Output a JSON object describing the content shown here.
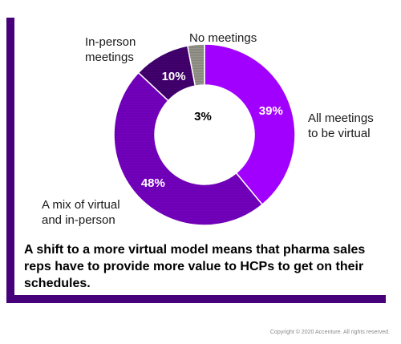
{
  "chart_data": {
    "type": "pie",
    "donut": true,
    "slices": [
      {
        "label_lines": [
          "All meetings",
          "to be virtual"
        ],
        "value": 39,
        "value_label": "39%",
        "color": "#a100ff",
        "hatched": false
      },
      {
        "label_lines": [
          "A mix of virtual",
          "and in-person"
        ],
        "value": 48,
        "value_label": "48%",
        "color": "#7500c0",
        "hatched": true
      },
      {
        "label_lines": [
          "In-person",
          "meetings"
        ],
        "value": 10,
        "value_label": "10%",
        "color": "#460073",
        "hatched": true
      },
      {
        "label_lines": [
          "No meetings"
        ],
        "value": 3,
        "value_label": "3%",
        "color": "#96968c",
        "hatched": true
      }
    ]
  },
  "caption": "A shift to a more virtual model means that pharma sales reps have to provide more value to HCPs to get on their schedules.",
  "copyright": "Copyright © 2020 Accenture. All rights reserved.",
  "colors": {
    "accent": "#a100ff",
    "card_shadow": "#46007a"
  }
}
